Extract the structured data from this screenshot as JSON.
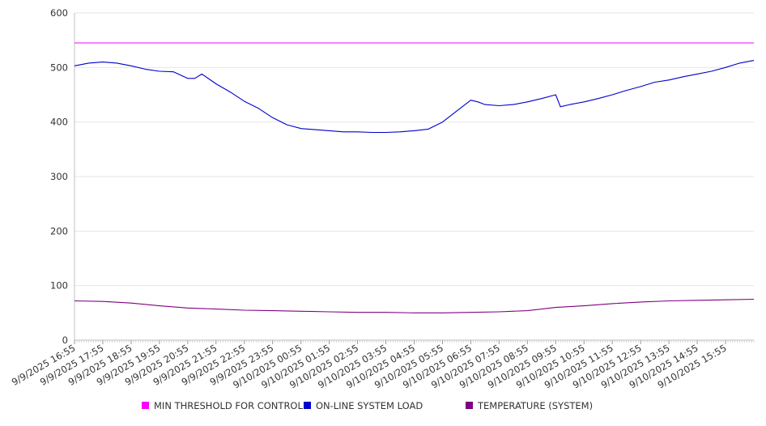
{
  "chart_data": {
    "type": "line",
    "title": "",
    "xlabel": "",
    "ylabel": "",
    "ylim": [
      0,
      600
    ],
    "yticks": [
      0,
      100,
      200,
      300,
      400,
      500,
      600
    ],
    "x_tick_labels": [
      "9/9/2025 16:55",
      "9/9/2025 17:55",
      "9/9/2025 18:55",
      "9/9/2025 19:55",
      "9/9/2025 20:55",
      "9/9/2025 21:55",
      "9/9/2025 22:55",
      "9/9/2025 23:55",
      "9/10/2025 00:55",
      "9/10/2025 01:55",
      "9/10/2025 02:55",
      "9/10/2025 03:55",
      "9/10/2025 04:55",
      "9/10/2025 05:55",
      "9/10/2025 06:55",
      "9/10/2025 07:55",
      "9/10/2025 08:55",
      "9/10/2025 09:55",
      "9/10/2025 10:55",
      "9/10/2025 11:55",
      "9/10/2025 12:55",
      "9/10/2025 13:55",
      "9/10/2025 14:55",
      "9/10/2025 15:55"
    ],
    "grid": true,
    "legend_position": "bottom",
    "series": [
      {
        "name": "MIN THRESHOLD FOR CONTROL",
        "color": "#ff00ff",
        "x": [
          "9/9/2025 16:55",
          "9/9/2025 17:55",
          "9/9/2025 18:55",
          "9/9/2025 19:55",
          "9/9/2025 20:55",
          "9/9/2025 21:55",
          "9/9/2025 22:55",
          "9/9/2025 23:55",
          "9/10/2025 00:55",
          "9/10/2025 01:55",
          "9/10/2025 02:55",
          "9/10/2025 03:55",
          "9/10/2025 04:55",
          "9/10/2025 05:55",
          "9/10/2025 06:55",
          "9/10/2025 07:55",
          "9/10/2025 08:55",
          "9/10/2025 09:55",
          "9/10/2025 10:55",
          "9/10/2025 11:55",
          "9/10/2025 12:55",
          "9/10/2025 13:55",
          "9/10/2025 14:55",
          "9/10/2025 15:55",
          "9/10/2025 16:55"
        ],
        "values": [
          545,
          545,
          545,
          545,
          545,
          545,
          545,
          545,
          545,
          545,
          545,
          545,
          545,
          545,
          545,
          545,
          545,
          545,
          545,
          545,
          545,
          545,
          545,
          545,
          545
        ]
      },
      {
        "name": "ON-LINE SYSTEM LOAD",
        "color": "#0000cc",
        "x": [
          "9/9/2025 16:55",
          "9/9/2025 17:25",
          "9/9/2025 17:55",
          "9/9/2025 18:25",
          "9/9/2025 18:55",
          "9/9/2025 19:25",
          "9/9/2025 19:55",
          "9/9/2025 20:25",
          "9/9/2025 20:55",
          "9/9/2025 21:10",
          "9/9/2025 21:25",
          "9/9/2025 21:55",
          "9/9/2025 22:25",
          "9/9/2025 22:55",
          "9/9/2025 23:25",
          "9/9/2025 23:55",
          "9/10/2025 00:25",
          "9/10/2025 00:55",
          "9/10/2025 01:25",
          "9/10/2025 01:55",
          "9/10/2025 02:25",
          "9/10/2025 02:55",
          "9/10/2025 03:25",
          "9/10/2025 03:55",
          "9/10/2025 04:25",
          "9/10/2025 04:55",
          "9/10/2025 05:25",
          "9/10/2025 05:55",
          "9/10/2025 06:25",
          "9/10/2025 06:55",
          "9/10/2025 07:10",
          "9/10/2025 07:25",
          "9/10/2025 07:55",
          "9/10/2025 08:25",
          "9/10/2025 08:55",
          "9/10/2025 09:25",
          "9/10/2025 09:55",
          "9/10/2025 10:05",
          "9/10/2025 10:25",
          "9/10/2025 10:55",
          "9/10/2025 11:25",
          "9/10/2025 11:55",
          "9/10/2025 12:25",
          "9/10/2025 12:55",
          "9/10/2025 13:25",
          "9/10/2025 13:55",
          "9/10/2025 14:25",
          "9/10/2025 14:55",
          "9/10/2025 15:25",
          "9/10/2025 15:55",
          "9/10/2025 16:25",
          "9/10/2025 16:55"
        ],
        "values": [
          503,
          508,
          510,
          508,
          503,
          497,
          493,
          492,
          480,
          480,
          488,
          470,
          455,
          438,
          425,
          408,
          395,
          388,
          386,
          384,
          382,
          382,
          381,
          381,
          382,
          384,
          387,
          400,
          420,
          440,
          437,
          432,
          430,
          432,
          437,
          443,
          450,
          428,
          432,
          437,
          443,
          450,
          458,
          465,
          473,
          477,
          483,
          488,
          493,
          500,
          508,
          513
        ]
      },
      {
        "name": "TEMPERATURE (SYSTEM)",
        "color": "#800080",
        "x": [
          "9/9/2025 16:55",
          "9/9/2025 17:55",
          "9/9/2025 18:55",
          "9/9/2025 19:55",
          "9/9/2025 20:55",
          "9/9/2025 21:55",
          "9/9/2025 22:55",
          "9/9/2025 23:55",
          "9/10/2025 00:55",
          "9/10/2025 01:55",
          "9/10/2025 02:55",
          "9/10/2025 03:55",
          "9/10/2025 04:55",
          "9/10/2025 05:55",
          "9/10/2025 06:55",
          "9/10/2025 07:55",
          "9/10/2025 08:55",
          "9/10/2025 09:55",
          "9/10/2025 10:55",
          "9/10/2025 11:55",
          "9/10/2025 12:55",
          "9/10/2025 13:55",
          "9/10/2025 14:55",
          "9/10/2025 15:55",
          "9/10/2025 16:55"
        ],
        "values": [
          72,
          71,
          68,
          63,
          59,
          57,
          55,
          54,
          53,
          52,
          51,
          51,
          50,
          50,
          51,
          52,
          54,
          60,
          63,
          67,
          70,
          72,
          73,
          74,
          75
        ]
      }
    ]
  }
}
